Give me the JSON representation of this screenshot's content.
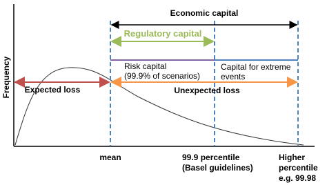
{
  "axis": {
    "y_label": "Frequency"
  },
  "spans": {
    "economic_capital": "Economic capital",
    "regulatory_capital": "Regulatory capital",
    "risk_capital": [
      "Risk capital",
      "(99.9% of scenarios)"
    ],
    "extreme_events": [
      "Capital for extreme",
      "events"
    ],
    "expected_loss": "Expected loss",
    "unexpected_loss": "Unexpected loss"
  },
  "x_labels": {
    "mean": [
      "mean"
    ],
    "percentile": [
      "99.9 percentile",
      "(Basel guidelines)"
    ],
    "higher": [
      "Higher",
      "percentile",
      "e.g. 99.98"
    ]
  }
}
